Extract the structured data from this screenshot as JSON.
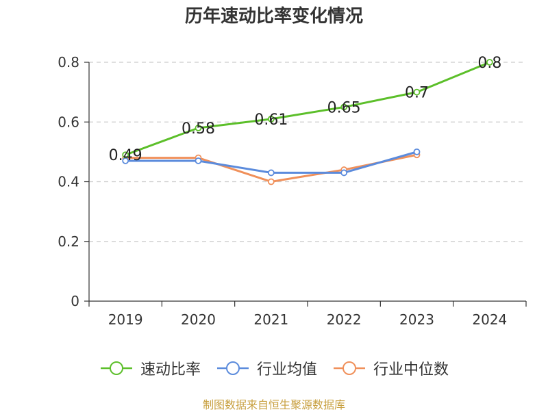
{
  "source_text": "制图数据来自恒生聚源数据库",
  "chart_data": {
    "type": "line",
    "title": "历年速动比率变化情况",
    "categories": [
      "2019",
      "2020",
      "2021",
      "2022",
      "2023",
      "2024"
    ],
    "ylim": [
      0,
      0.8
    ],
    "yticks": [
      "0",
      "0.2",
      "0.4",
      "0.6",
      "0.8"
    ],
    "grid": true,
    "legend_position": "bottom",
    "series": [
      {
        "name": "速动比率",
        "color": "#5cbf2a",
        "values": [
          0.49,
          0.58,
          0.61,
          0.65,
          0.7,
          0.8
        ],
        "labels": [
          "0.49",
          "0.58",
          "0.61",
          "0.65",
          "0.7",
          "0.8"
        ]
      },
      {
        "name": "行业均值",
        "color": "#5b8bdc",
        "values": [
          0.47,
          0.47,
          0.43,
          0.43,
          0.5,
          null
        ],
        "labels": []
      },
      {
        "name": "行业中位数",
        "color": "#f0905a",
        "values": [
          0.48,
          0.48,
          0.4,
          0.44,
          0.49,
          null
        ],
        "labels": []
      }
    ]
  }
}
